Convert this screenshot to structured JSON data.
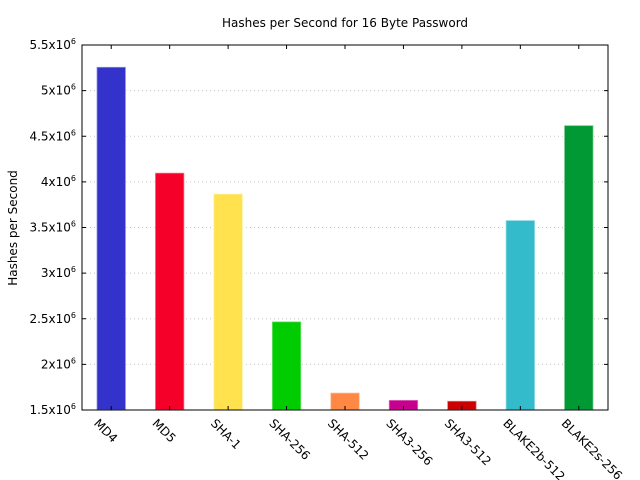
{
  "chart_data": {
    "type": "bar",
    "title": "Hashes per Second for 16 Byte Password",
    "xlabel": "",
    "ylabel": "Hashes per Second",
    "categories": [
      "MD4",
      "MD5",
      "SHA-1",
      "SHA-256",
      "SHA-512",
      "SHA3-256",
      "SHA3-512",
      "BLAKE2b-512",
      "BLAKE2s-256"
    ],
    "values": [
      5260000,
      4100000,
      3870000,
      2470000,
      1690000,
      1610000,
      1600000,
      3580000,
      4620000
    ],
    "colors": [
      "#3333cc",
      "#f50028",
      "#ffe24d",
      "#00cc00",
      "#ff8844",
      "#c7008f",
      "#cc0000",
      "#33bbcc",
      "#009933"
    ],
    "ylim": [
      1500000,
      5500000
    ],
    "yticks": [
      {
        "value": 1500000,
        "base": "1.5x10",
        "exp": "6"
      },
      {
        "value": 2000000,
        "base": "2x10",
        "exp": "6"
      },
      {
        "value": 2500000,
        "base": "2.5x10",
        "exp": "6"
      },
      {
        "value": 3000000,
        "base": "3x10",
        "exp": "6"
      },
      {
        "value": 3500000,
        "base": "3.5x10",
        "exp": "6"
      },
      {
        "value": 4000000,
        "base": "4x10",
        "exp": "6"
      },
      {
        "value": 4500000,
        "base": "4.5x10",
        "exp": "6"
      },
      {
        "value": 5000000,
        "base": "5x10",
        "exp": "6"
      },
      {
        "value": 5500000,
        "base": "5.5x10",
        "exp": "6"
      }
    ],
    "grid": "horizontal-dotted",
    "legend": "none"
  }
}
